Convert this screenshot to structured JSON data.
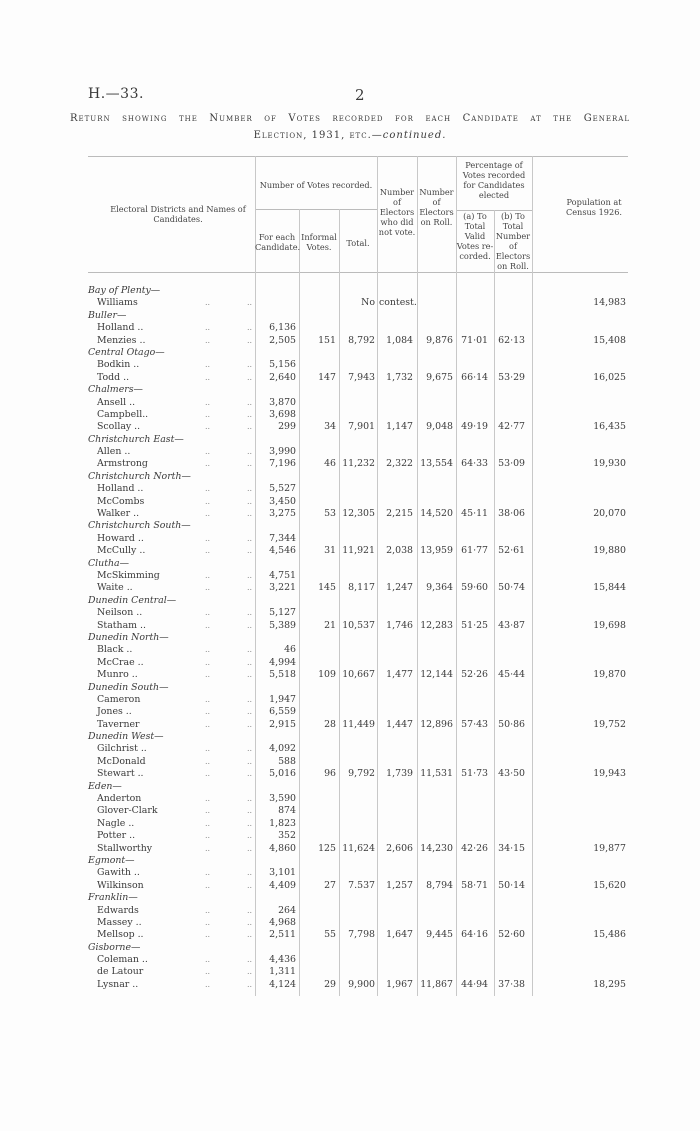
{
  "header": {
    "reference": "H.—33.",
    "page_number": "2",
    "title_line1": "Return showing the Number of Votes recorded for each Candidate at the General",
    "title_line2": "Election, 1931, etc.—",
    "title_continued": "continued."
  },
  "columns": {
    "districts": "Electoral Districts and Names of Candidates.",
    "votes_group": "Number of Votes recorded.",
    "for_each": "For each Candidate.",
    "informal": "Informal Votes.",
    "total": "Total.",
    "not_voted": "Number of Electors who did not vote.",
    "roll": "Number of Electors on Roll.",
    "pct_group": "Percentage of Votes recorded for Candidates elected",
    "pct_a": "(a) To Total Valid Votes re-corded.",
    "pct_b": "(b) To Total Number of Electors on Roll.",
    "population": "Population at Census 1926."
  },
  "leader": "..",
  "districts": [
    {
      "name": "Bay of Plenty—",
      "candidates": [
        {
          "name": "Williams",
          "votes": ""
        }
      ],
      "informal": "",
      "total": "No",
      "not_voted": "contest.",
      "roll": "",
      "pct_valid": "",
      "pct_roll": "",
      "population": "14,983"
    },
    {
      "name": "Buller—",
      "candidates": [
        {
          "name": "Holland ..",
          "votes": "6,136"
        },
        {
          "name": "Menzies ..",
          "votes": "2,505"
        }
      ],
      "informal": "151",
      "total": "8,792",
      "not_voted": "1,084",
      "roll": "9,876",
      "pct_valid": "71·01",
      "pct_roll": "62·13",
      "population": "15,408"
    },
    {
      "name": "Central Otago—",
      "candidates": [
        {
          "name": "Bodkin ..",
          "votes": "5,156"
        },
        {
          "name": "Todd ..",
          "votes": "2,640"
        }
      ],
      "informal": "147",
      "total": "7,943",
      "not_voted": "1,732",
      "roll": "9,675",
      "pct_valid": "66·14",
      "pct_roll": "53·29",
      "population": "16,025"
    },
    {
      "name": "Chalmers—",
      "candidates": [
        {
          "name": "Ansell ..",
          "votes": "3,870"
        },
        {
          "name": "Campbell..",
          "votes": "3,698"
        },
        {
          "name": "Scollay ..",
          "votes": "299"
        }
      ],
      "informal": "34",
      "total": "7,901",
      "not_voted": "1,147",
      "roll": "9,048",
      "pct_valid": "49·19",
      "pct_roll": "42·77",
      "population": "16,435"
    },
    {
      "name": "Christchurch East—",
      "candidates": [
        {
          "name": "Allen ..",
          "votes": "3,990"
        },
        {
          "name": "Armstrong",
          "votes": "7,196"
        }
      ],
      "informal": "46",
      "total": "11,232",
      "not_voted": "2,322",
      "roll": "13,554",
      "pct_valid": "64·33",
      "pct_roll": "53·09",
      "population": "19,930"
    },
    {
      "name": "Christchurch North—",
      "candidates": [
        {
          "name": "Holland ..",
          "votes": "5,527"
        },
        {
          "name": "McCombs",
          "votes": "3,450"
        },
        {
          "name": "Walker ..",
          "votes": "3,275"
        }
      ],
      "informal": "53",
      "total": "12,305",
      "not_voted": "2,215",
      "roll": "14,520",
      "pct_valid": "45·11",
      "pct_roll": "38·06",
      "population": "20,070"
    },
    {
      "name": "Christchurch South—",
      "candidates": [
        {
          "name": "Howard ..",
          "votes": "7,344"
        },
        {
          "name": "McCully ..",
          "votes": "4,546"
        }
      ],
      "informal": "31",
      "total": "11,921",
      "not_voted": "2,038",
      "roll": "13,959",
      "pct_valid": "61·77",
      "pct_roll": "52·61",
      "population": "19,880"
    },
    {
      "name": "Clutha—",
      "candidates": [
        {
          "name": "McSkimming",
          "votes": "4,751"
        },
        {
          "name": "Waite ..",
          "votes": "3,221"
        }
      ],
      "informal": "145",
      "total": "8,117",
      "not_voted": "1,247",
      "roll": "9,364",
      "pct_valid": "59·60",
      "pct_roll": "50·74",
      "population": "15,844"
    },
    {
      "name": "Dunedin Central—",
      "candidates": [
        {
          "name": "Neilson ..",
          "votes": "5,127"
        },
        {
          "name": "Statham ..",
          "votes": "5,389"
        }
      ],
      "informal": "21",
      "total": "10,537",
      "not_voted": "1,746",
      "roll": "12,283",
      "pct_valid": "51·25",
      "pct_roll": "43·87",
      "population": "19,698"
    },
    {
      "name": "Dunedin North—",
      "candidates": [
        {
          "name": "Black ..",
          "votes": "46"
        },
        {
          "name": "McCrae ..",
          "votes": "4,994"
        },
        {
          "name": "Munro ..",
          "votes": "5,518"
        }
      ],
      "informal": "109",
      "total": "10,667",
      "not_voted": "1,477",
      "roll": "12,144",
      "pct_valid": "52·26",
      "pct_roll": "45·44",
      "population": "19,870"
    },
    {
      "name": "Dunedin South—",
      "candidates": [
        {
          "name": "Cameron",
          "votes": "1,947"
        },
        {
          "name": "Jones ..",
          "votes": "6,559"
        },
        {
          "name": "Taverner",
          "votes": "2,915"
        }
      ],
      "informal": "28",
      "total": "11,449",
      "not_voted": "1,447",
      "roll": "12,896",
      "pct_valid": "57·43",
      "pct_roll": "50·86",
      "population": "19,752"
    },
    {
      "name": "Dunedin West—",
      "candidates": [
        {
          "name": "Gilchrist ..",
          "votes": "4,092"
        },
        {
          "name": "McDonald",
          "votes": "588"
        },
        {
          "name": "Stewart ..",
          "votes": "5,016"
        }
      ],
      "informal": "96",
      "total": "9,792",
      "not_voted": "1,739",
      "roll": "11,531",
      "pct_valid": "51·73",
      "pct_roll": "43·50",
      "population": "19,943"
    },
    {
      "name": "Eden—",
      "candidates": [
        {
          "name": "Anderton",
          "votes": "3,590"
        },
        {
          "name": "Glover-Clark",
          "votes": "874"
        },
        {
          "name": "Nagle ..",
          "votes": "1,823"
        },
        {
          "name": "Potter ..",
          "votes": "352"
        },
        {
          "name": "Stallworthy",
          "votes": "4,860"
        }
      ],
      "informal": "125",
      "total": "11,624",
      "not_voted": "2,606",
      "roll": "14,230",
      "pct_valid": "42·26",
      "pct_roll": "34·15",
      "population": "19,877"
    },
    {
      "name": "Egmont—",
      "candidates": [
        {
          "name": "Gawith ..",
          "votes": "3,101"
        },
        {
          "name": "Wilkinson",
          "votes": "4,409"
        }
      ],
      "informal": "27",
      "total": "7.537",
      "not_voted": "1,257",
      "roll": "8,794",
      "pct_valid": "58·71",
      "pct_roll": "50·14",
      "population": "15,620"
    },
    {
      "name": "Franklin—",
      "candidates": [
        {
          "name": "Edwards",
          "votes": "264"
        },
        {
          "name": "Massey ..",
          "votes": "4,968"
        },
        {
          "name": "Mellsop ..",
          "votes": "2,511"
        }
      ],
      "informal": "55",
      "total": "7,798",
      "not_voted": "1,647",
      "roll": "9,445",
      "pct_valid": "64·16",
      "pct_roll": "52·60",
      "population": "15,486"
    },
    {
      "name": "Gisborne—",
      "candidates": [
        {
          "name": "Coleman ..",
          "votes": "4,436"
        },
        {
          "name": "de Latour",
          "votes": "1,311"
        },
        {
          "name": "Lysnar ..",
          "votes": "4,124"
        }
      ],
      "informal": "29",
      "total": "9,900",
      "not_voted": "1,967",
      "roll": "11,867",
      "pct_valid": "44·94",
      "pct_roll": "37·38",
      "population": "18,295"
    }
  ]
}
